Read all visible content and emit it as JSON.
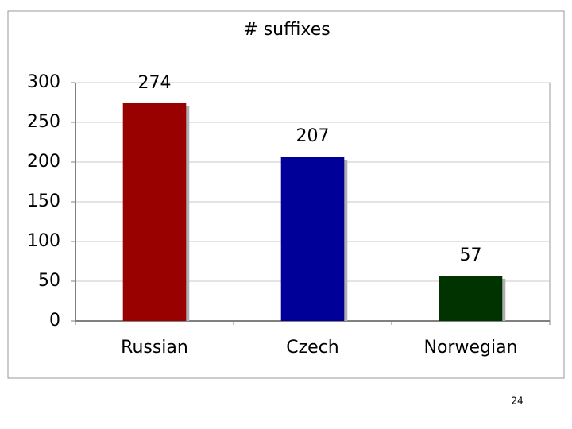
{
  "chart_data": {
    "type": "bar",
    "title": "# suffixes",
    "categories": [
      "Russian",
      "Czech",
      "Norwegian"
    ],
    "values": [
      274,
      207,
      57
    ],
    "colors": [
      "#990000",
      "#000099",
      "#003300"
    ],
    "ylim": [
      0,
      300
    ],
    "yticks": [
      0,
      50,
      100,
      150,
      200,
      250,
      300
    ],
    "grid": true
  },
  "slide_number": "24"
}
